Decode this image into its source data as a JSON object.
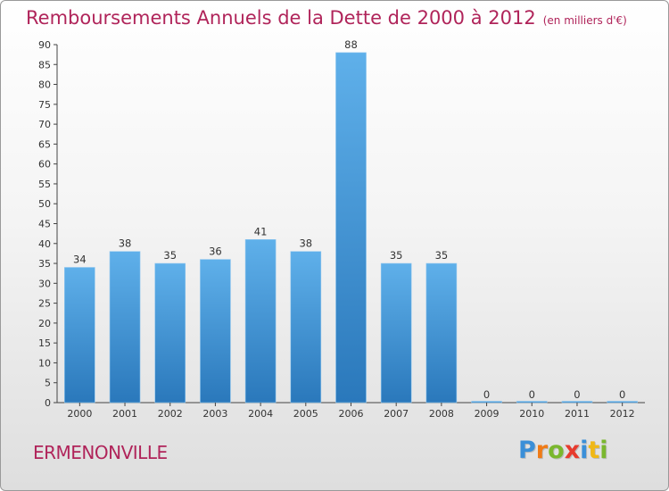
{
  "title": "Remboursements Annuels de la Dette de 2000 à 2012",
  "subtitle": "(en milliers d'€)",
  "city": "ERMENONVILLE",
  "logo": {
    "letters": [
      "P",
      "r",
      "o",
      "x",
      "i",
      "t",
      "i"
    ],
    "colors": [
      "#3a8fd8",
      "#f07b16",
      "#7ab72e",
      "#e73b2e",
      "#3a8fd8",
      "#f0b816",
      "#7ab72e"
    ]
  },
  "colors": {
    "bar_top": "#5fb0ea",
    "bar_bottom": "#2a78bb",
    "title": "#b0245a"
  },
  "chart_data": {
    "type": "bar",
    "categories": [
      "2000",
      "2001",
      "2002",
      "2003",
      "2004",
      "2005",
      "2006",
      "2007",
      "2008",
      "2009",
      "2010",
      "2011",
      "2012"
    ],
    "values": [
      34,
      38,
      35,
      36,
      41,
      38,
      88,
      35,
      35,
      0,
      0,
      0,
      0
    ],
    "data_labels": [
      "34",
      "38",
      "35",
      "36",
      "41",
      "38",
      "88",
      "35",
      "35",
      "0",
      "0",
      "0",
      "0"
    ],
    "ylim": [
      0,
      90
    ],
    "yticks": [
      0,
      5,
      10,
      15,
      20,
      25,
      30,
      35,
      40,
      45,
      50,
      55,
      60,
      65,
      70,
      75,
      80,
      85,
      90
    ],
    "grid": false,
    "xlabel": "",
    "ylabel": ""
  }
}
